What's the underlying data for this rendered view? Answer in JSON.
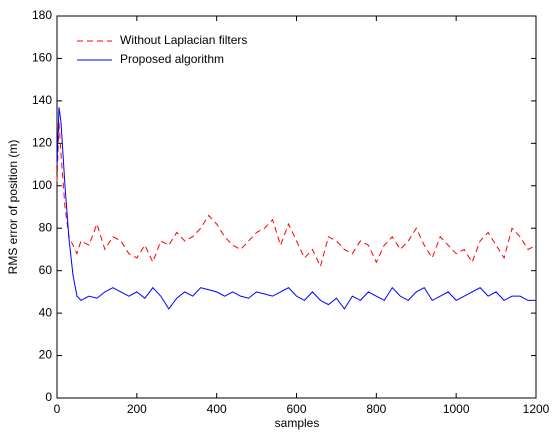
{
  "chart_data": {
    "type": "line",
    "xlabel": "samples",
    "ylabel": "RMS error of position (m)",
    "x": [
      0,
      5,
      10,
      20,
      30,
      40,
      50,
      60,
      80,
      100,
      120,
      140,
      160,
      180,
      200,
      220,
      240,
      260,
      280,
      300,
      320,
      340,
      360,
      380,
      400,
      420,
      440,
      460,
      480,
      500,
      520,
      540,
      560,
      580,
      600,
      620,
      640,
      660,
      680,
      700,
      720,
      740,
      760,
      780,
      800,
      820,
      840,
      860,
      880,
      900,
      920,
      940,
      960,
      980,
      1000,
      1020,
      1040,
      1060,
      1080,
      1100,
      1120,
      1140,
      1160,
      1180,
      1200
    ],
    "series": [
      {
        "name": "Without Laplacian filters",
        "color": "#ff0000",
        "style": "dashed",
        "values": [
          102,
          130,
          115,
          90,
          76,
          72,
          68,
          74,
          72,
          82,
          70,
          76,
          74,
          68,
          66,
          72,
          64,
          74,
          72,
          78,
          74,
          76,
          80,
          86,
          82,
          76,
          72,
          70,
          74,
          78,
          80,
          84,
          72,
          82,
          74,
          66,
          70,
          62,
          76,
          74,
          70,
          68,
          74,
          72,
          64,
          72,
          76,
          70,
          74,
          80,
          72,
          66,
          76,
          72,
          68,
          70,
          64,
          74,
          78,
          72,
          66,
          80,
          76,
          70,
          72
        ]
      },
      {
        "name": "Proposed algorithm",
        "color": "#0000ff",
        "style": "solid",
        "values": [
          110,
          137,
          130,
          100,
          75,
          58,
          48,
          46,
          48,
          47,
          50,
          52,
          50,
          48,
          50,
          47,
          52,
          48,
          42,
          47,
          50,
          48,
          52,
          51,
          50,
          48,
          50,
          48,
          47,
          50,
          49,
          48,
          50,
          52,
          48,
          46,
          50,
          46,
          44,
          47,
          42,
          48,
          46,
          50,
          48,
          46,
          52,
          48,
          46,
          50,
          52,
          46,
          48,
          50,
          46,
          48,
          50,
          52,
          48,
          50,
          46,
          48,
          48,
          46,
          46
        ]
      }
    ],
    "xlim": [
      0,
      1200
    ],
    "xticks": [
      0,
      200,
      400,
      600,
      800,
      1000,
      1200
    ],
    "ylim": [
      0,
      180
    ],
    "yticks": [
      0,
      20,
      40,
      60,
      80,
      100,
      120,
      140,
      160,
      180
    ],
    "legend": "upper left"
  }
}
